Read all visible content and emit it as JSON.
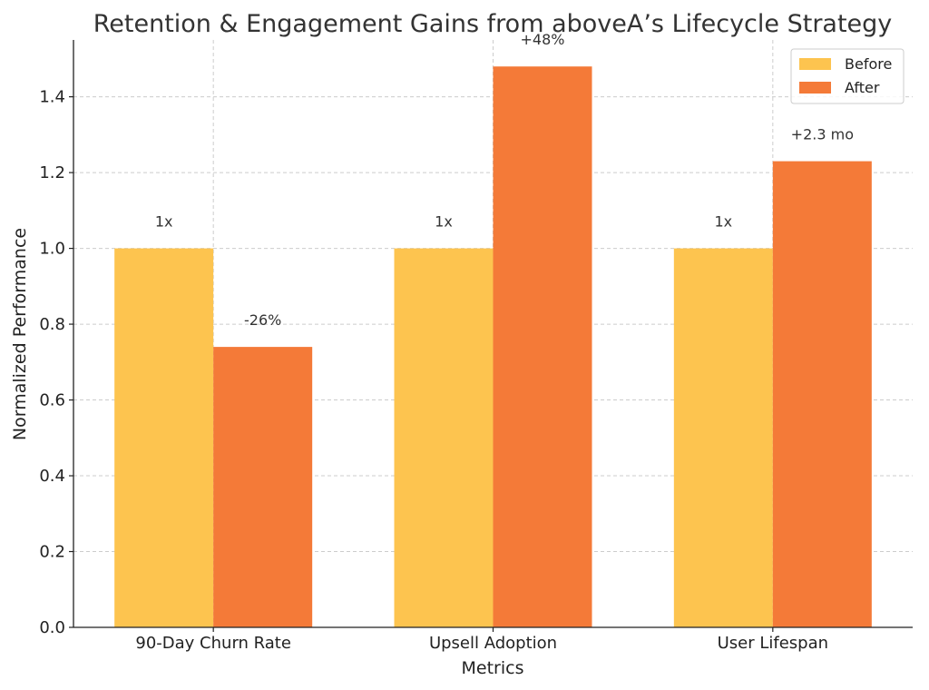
{
  "chart_data": {
    "type": "bar",
    "title": "Retention & Engagement Gains from aboveA’s Lifecycle Strategy",
    "xlabel": "Metrics",
    "ylabel": "Normalized Performance",
    "categories": [
      "90-Day Churn Rate",
      "Upsell Adoption",
      "User Lifespan"
    ],
    "series": [
      {
        "name": "Before",
        "values": [
          1.0,
          1.0,
          1.0
        ],
        "labels": [
          "1x",
          "1x",
          "1x"
        ],
        "color": "#FDC44F"
      },
      {
        "name": "After",
        "values": [
          0.74,
          1.48,
          1.23
        ],
        "labels": [
          "-26%",
          "+48%",
          "+2.3 mo"
        ],
        "color": "#F47A38"
      }
    ],
    "ylim": [
      0,
      1.55
    ],
    "yticks": [
      "0.0",
      "0.2",
      "0.4",
      "0.6",
      "0.8",
      "1.0",
      "1.2",
      "1.4"
    ],
    "grid": true,
    "legend_position": "top-right"
  }
}
